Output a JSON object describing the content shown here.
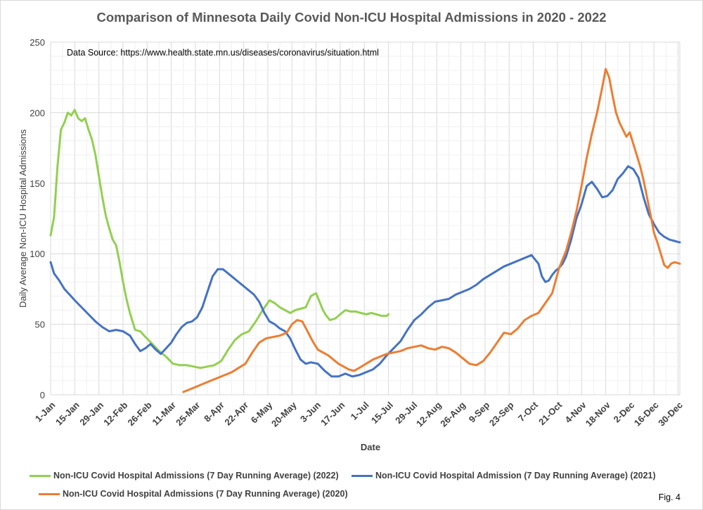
{
  "chart_data": {
    "type": "line",
    "title": "Comparison of Minnesota Daily Covid Non-ICU Hospital Admissions in 2020 - 2022",
    "annotation": "Data Source: https://www.health.state.mn.us/diseases/coronavirus/situation.html",
    "xlabel": "Date",
    "ylabel": "Daily Average Non-ICU Hospital Admissions",
    "ylim": [
      0,
      250
    ],
    "yticks": [
      0,
      50,
      100,
      150,
      200,
      250
    ],
    "x_unit": "day of year",
    "xlim": [
      1,
      366
    ],
    "xtick_days": [
      1,
      15,
      29,
      43,
      57,
      71,
      85,
      99,
      113,
      127,
      141,
      155,
      169,
      183,
      197,
      211,
      225,
      239,
      253,
      267,
      281,
      295,
      309,
      323,
      337,
      351,
      365
    ],
    "xtick_labels": [
      "1-Jan",
      "15-Jan",
      "29-Jan",
      "12-Feb",
      "26-Feb",
      "11-Mar",
      "25-Mar",
      "8-Apr",
      "22-Apr",
      "6-May",
      "20-May",
      "3-Jun",
      "17-Jun",
      "1-Jul",
      "15-Jul",
      "29-Jul",
      "12-Aug",
      "26-Aug",
      "9-Sep",
      "23-Sep",
      "7-Oct",
      "21-Oct",
      "4-Nov",
      "18-Nov",
      "2-Dec",
      "16-Dec",
      "30-Dec"
    ],
    "grid": true,
    "legend_position": "bottom",
    "series": [
      {
        "name": "Non-ICU Covid Hospital Admissions (7 Day Running Average) (2022)",
        "color": "#92d050",
        "x": [
          1,
          3,
          5,
          7,
          9,
          11,
          13,
          15,
          17,
          19,
          21,
          23,
          25,
          27,
          29,
          31,
          33,
          35,
          37,
          39,
          41,
          43,
          45,
          47,
          50,
          53,
          56,
          60,
          64,
          68,
          72,
          76,
          80,
          84,
          88,
          92,
          96,
          100,
          104,
          108,
          112,
          116,
          120,
          124,
          128,
          131,
          134,
          137,
          140,
          143,
          146,
          149,
          152,
          155,
          157,
          159,
          161,
          163,
          166,
          169,
          172,
          175,
          178,
          181,
          184,
          187,
          190,
          193,
          196,
          197
        ],
        "values": [
          113,
          126,
          162,
          188,
          193,
          200,
          198,
          202,
          196,
          194,
          196,
          188,
          181,
          170,
          155,
          140,
          127,
          118,
          110,
          106,
          94,
          80,
          68,
          58,
          46,
          45,
          41,
          36,
          31,
          27,
          22,
          21,
          21,
          20,
          19,
          20,
          21,
          24,
          32,
          39,
          43,
          45,
          52,
          60,
          67,
          65,
          62,
          60,
          58,
          60,
          61,
          62,
          70,
          72,
          66,
          60,
          56,
          53,
          54,
          57,
          60,
          59,
          59,
          58,
          57,
          58,
          57,
          56,
          56,
          57
        ]
      },
      {
        "name": "Non-ICU Covid Hospital Admission (7 Day Running Average) (2021)",
        "color": "#4472c4",
        "x": [
          1,
          3,
          6,
          9,
          12,
          15,
          19,
          23,
          27,
          31,
          35,
          39,
          43,
          47,
          50,
          53,
          56,
          59,
          62,
          65,
          68,
          71,
          74,
          77,
          80,
          83,
          86,
          89,
          92,
          95,
          98,
          101,
          104,
          107,
          110,
          113,
          116,
          119,
          122,
          125,
          128,
          131,
          134,
          137,
          140,
          143,
          146,
          149,
          152,
          156,
          160,
          164,
          168,
          172,
          176,
          180,
          184,
          188,
          192,
          196,
          200,
          204,
          208,
          212,
          216,
          220,
          224,
          228,
          232,
          236,
          240,
          244,
          248,
          252,
          256,
          260,
          264,
          268,
          272,
          276,
          280,
          284,
          286,
          288,
          290,
          292,
          294,
          296,
          298,
          300,
          303,
          306,
          309,
          312,
          315,
          318,
          321,
          324,
          327,
          330,
          333,
          336,
          339,
          342,
          345,
          348,
          351,
          354,
          357,
          360,
          363,
          366
        ],
        "values": [
          94,
          86,
          81,
          75,
          71,
          67,
          62,
          57,
          52,
          48,
          45,
          46,
          45,
          42,
          36,
          31,
          33,
          36,
          32,
          29,
          33,
          37,
          43,
          48,
          51,
          52,
          55,
          62,
          73,
          84,
          89,
          89,
          86,
          83,
          80,
          77,
          74,
          71,
          66,
          58,
          52,
          50,
          47,
          45,
          40,
          32,
          25,
          22,
          23,
          22,
          17,
          13,
          13,
          15,
          13,
          14,
          16,
          18,
          22,
          28,
          33,
          38,
          46,
          53,
          57,
          62,
          66,
          67,
          68,
          71,
          73,
          75,
          78,
          82,
          85,
          88,
          91,
          93,
          95,
          97,
          99,
          93,
          84,
          80,
          81,
          85,
          88,
          90,
          93,
          98,
          110,
          125,
          135,
          148,
          151,
          146,
          140,
          141,
          145,
          153,
          157,
          162,
          160,
          154,
          140,
          128,
          121,
          115,
          112,
          110,
          109,
          108
        ]
      },
      {
        "name": "Non-ICU Covid Hospital Admissions (7 Day Running Average) (2020)",
        "color": "#ed7d31",
        "x": [
          78,
          82,
          86,
          90,
          94,
          98,
          102,
          106,
          110,
          114,
          118,
          122,
          126,
          130,
          134,
          138,
          141,
          144,
          147,
          150,
          153,
          156,
          159,
          162,
          165,
          168,
          171,
          174,
          177,
          180,
          184,
          188,
          192,
          196,
          200,
          204,
          208,
          212,
          216,
          220,
          224,
          228,
          232,
          236,
          240,
          244,
          248,
          252,
          256,
          260,
          264,
          268,
          272,
          276,
          280,
          284,
          288,
          292,
          296,
          300,
          303,
          306,
          309,
          312,
          315,
          318,
          321,
          323,
          325,
          327,
          329,
          331,
          333,
          335,
          337,
          339,
          341,
          343,
          345,
          347,
          349,
          351,
          353,
          355,
          357,
          359,
          361,
          363,
          366
        ],
        "values": [
          2,
          4,
          6,
          8,
          10,
          12,
          14,
          16,
          19,
          22,
          30,
          37,
          40,
          41,
          42,
          44,
          50,
          53,
          52,
          45,
          38,
          32,
          30,
          28,
          25,
          22,
          20,
          18,
          17,
          19,
          22,
          25,
          27,
          29,
          30,
          31,
          33,
          34,
          35,
          33,
          32,
          34,
          33,
          30,
          26,
          22,
          21,
          24,
          30,
          37,
          44,
          43,
          47,
          53,
          56,
          58,
          65,
          72,
          90,
          102,
          115,
          130,
          148,
          168,
          185,
          200,
          218,
          231,
          225,
          212,
          200,
          193,
          188,
          183,
          186,
          178,
          170,
          162,
          152,
          140,
          128,
          115,
          108,
          100,
          92,
          90,
          93,
          94,
          93
        ]
      }
    ],
    "legend_entries": [
      "Non-ICU Covid Hospital Admissions (7 Day Running Average) (2022)",
      "Non-ICU Covid Hospital Admission (7 Day Running Average) (2021)",
      "Non-ICU Covid Hospital Admissions (7 Day Running Average) (2020)"
    ],
    "figure_label": "Fig. 4"
  }
}
